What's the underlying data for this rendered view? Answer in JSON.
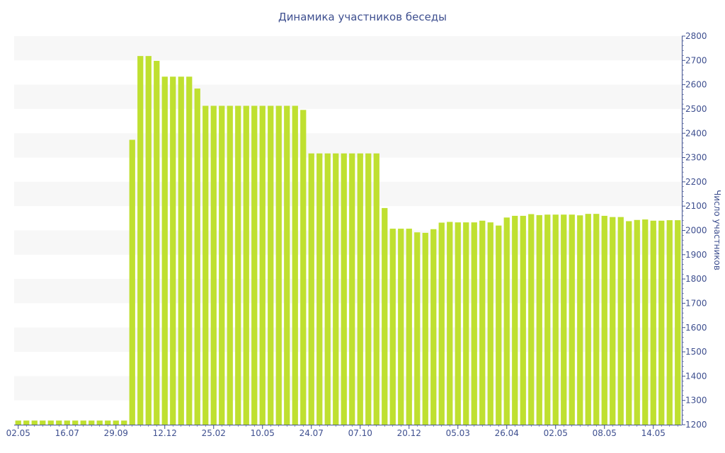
{
  "chart_data": {
    "type": "bar",
    "title": "Динамика участников беседы",
    "xlabel": "",
    "ylabel": "Число участников",
    "ylim": [
      1200,
      2800
    ],
    "y_axis_side": "right",
    "y_ticks": [
      1200,
      1300,
      1400,
      1500,
      1600,
      1700,
      1800,
      1900,
      2000,
      2100,
      2200,
      2300,
      2400,
      2500,
      2600,
      2700,
      2800
    ],
    "x_tick_labels": [
      {
        "label": "02.05",
        "index": 0
      },
      {
        "label": "16.07",
        "index": 6
      },
      {
        "label": "29.09",
        "index": 12
      },
      {
        "label": "12.12",
        "index": 18
      },
      {
        "label": "25.02",
        "index": 24
      },
      {
        "label": "10.05",
        "index": 30
      },
      {
        "label": "24.07",
        "index": 36
      },
      {
        "label": "07.10",
        "index": 42
      },
      {
        "label": "20.12",
        "index": 48
      },
      {
        "label": "05.03",
        "index": 54
      },
      {
        "label": "26.04",
        "index": 60
      },
      {
        "label": "02.05",
        "index": 66
      },
      {
        "label": "08.05",
        "index": 72
      },
      {
        "label": "14.05",
        "index": 78
      }
    ],
    "values": [
      1217,
      1217,
      1217,
      1217,
      1217,
      1217,
      1217,
      1217,
      1217,
      1217,
      1217,
      1217,
      1217,
      1217,
      2373,
      2718,
      2718,
      2698,
      2633,
      2633,
      2633,
      2633,
      2584,
      2513,
      2513,
      2513,
      2513,
      2513,
      2513,
      2513,
      2513,
      2513,
      2513,
      2513,
      2513,
      2496,
      2317,
      2317,
      2317,
      2317,
      2317,
      2317,
      2317,
      2317,
      2317,
      2092,
      2007,
      2007,
      2007,
      1992,
      1990,
      2005,
      2032,
      2035,
      2033,
      2033,
      2033,
      2040,
      2033,
      2020,
      2053,
      2060,
      2060,
      2067,
      2063,
      2065,
      2065,
      2065,
      2065,
      2062,
      2068,
      2068,
      2060,
      2055,
      2055,
      2038,
      2043,
      2045,
      2040,
      2040,
      2042,
      2042
    ],
    "bar_color": "#bfe030",
    "grid": "alternating horizontal bands",
    "legend": "none"
  }
}
